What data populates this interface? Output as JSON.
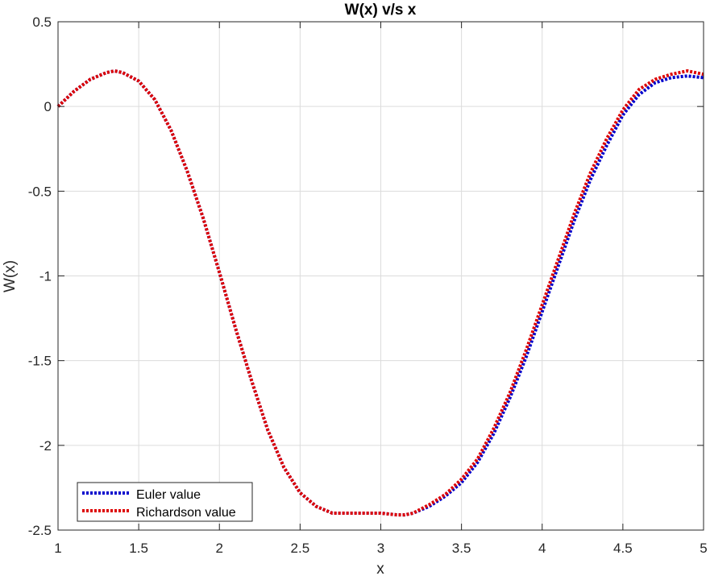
{
  "chart_data": {
    "type": "line",
    "title": "W(x) v/s x",
    "xlabel": "x",
    "ylabel": "W(x)",
    "xlim": [
      1,
      5
    ],
    "ylim": [
      -2.5,
      0.5
    ],
    "xticks": [
      "1",
      "1.5",
      "2",
      "2.5",
      "3",
      "3.5",
      "4",
      "4.5",
      "5"
    ],
    "yticks": [
      "0.5",
      "0",
      "-0.5",
      "-1",
      "-1.5",
      "-2",
      "-2.5"
    ],
    "grid": true,
    "legend_position": "bottom-left",
    "x": [
      1.0,
      1.1,
      1.2,
      1.3,
      1.35,
      1.4,
      1.5,
      1.6,
      1.7,
      1.8,
      1.9,
      2.0,
      2.1,
      2.2,
      2.3,
      2.4,
      2.5,
      2.6,
      2.7,
      2.8,
      2.9,
      3.0,
      3.1,
      3.15,
      3.2,
      3.3,
      3.4,
      3.5,
      3.6,
      3.7,
      3.8,
      3.9,
      4.0,
      4.1,
      4.2,
      4.3,
      4.4,
      4.5,
      4.6,
      4.7,
      4.8,
      4.9,
      5.0
    ],
    "series": [
      {
        "name": "Euler value",
        "color": "#0000cc",
        "values": [
          0.0,
          0.09,
          0.16,
          0.2,
          0.21,
          0.2,
          0.15,
          0.04,
          -0.14,
          -0.38,
          -0.66,
          -0.98,
          -1.31,
          -1.62,
          -1.91,
          -2.13,
          -2.28,
          -2.36,
          -2.4,
          -2.4,
          -2.4,
          -2.4,
          -2.41,
          -2.41,
          -2.4,
          -2.36,
          -2.3,
          -2.22,
          -2.1,
          -1.93,
          -1.72,
          -1.48,
          -1.21,
          -0.94,
          -0.67,
          -0.43,
          -0.23,
          -0.05,
          0.07,
          0.14,
          0.17,
          0.18,
          0.17
        ]
      },
      {
        "name": "Richardson value",
        "color": "#dd0000",
        "values": [
          0.0,
          0.09,
          0.16,
          0.2,
          0.21,
          0.2,
          0.15,
          0.04,
          -0.14,
          -0.38,
          -0.66,
          -0.98,
          -1.31,
          -1.62,
          -1.91,
          -2.13,
          -2.28,
          -2.36,
          -2.4,
          -2.4,
          -2.4,
          -2.4,
          -2.41,
          -2.41,
          -2.4,
          -2.35,
          -2.29,
          -2.2,
          -2.08,
          -1.9,
          -1.69,
          -1.44,
          -1.17,
          -0.9,
          -0.63,
          -0.39,
          -0.19,
          -0.02,
          0.1,
          0.16,
          0.19,
          0.21,
          0.19
        ]
      }
    ]
  }
}
